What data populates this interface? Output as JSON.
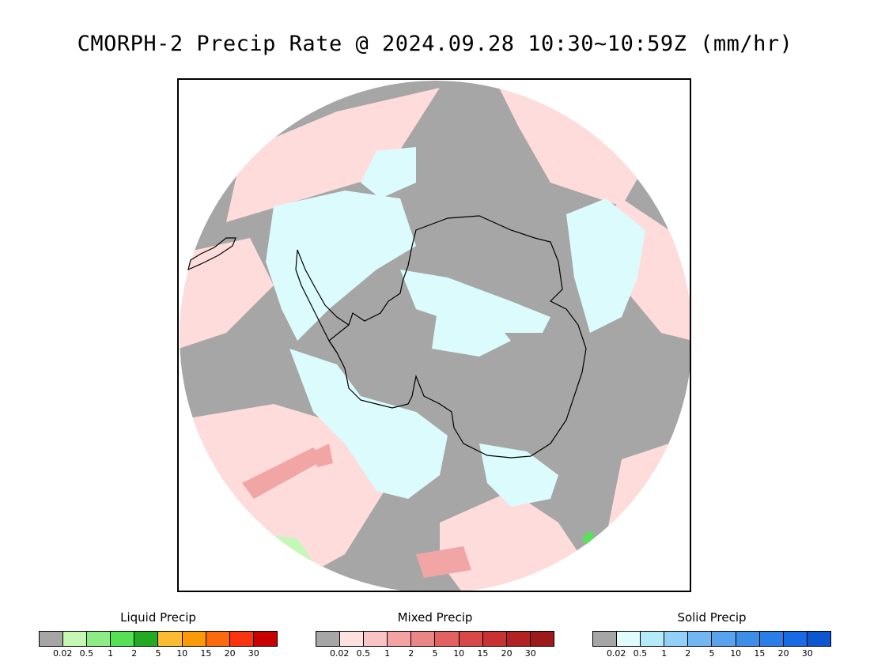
{
  "title": "CMORPH-2 Precip Rate @ 2024.09.28 10:30~10:59Z (mm/hr)",
  "map": {
    "projection": "south-polar-stereographic",
    "colors": {
      "no_precip": "#a6a6a6",
      "mixed_light": "#ffdcdc",
      "solid_light": "#dcfbfc",
      "mixed_moderate": "#f2a5a5",
      "liquid_light": "#c4f8b8",
      "liquid_moderate": "#5ae05a",
      "coastline": "#000000"
    }
  },
  "legends": [
    {
      "title": "Liquid Precip",
      "colors": [
        "#a6a6a6",
        "#c6f8b4",
        "#8eec86",
        "#55e055",
        "#22aa22",
        "#fbbb33",
        "#fb9a06",
        "#fb6a0c",
        "#fb3410",
        "#c80000"
      ],
      "ticks": [
        "0.02",
        "0.5",
        "1",
        "2",
        "5",
        "10",
        "15",
        "20",
        "30"
      ]
    },
    {
      "title": "Mixed Precip",
      "colors": [
        "#a6a6a6",
        "#fde1e1",
        "#f9c4c4",
        "#f3a3a3",
        "#ec8686",
        "#e26262",
        "#d84848",
        "#c83232",
        "#b22222",
        "#9c1a1a"
      ],
      "ticks": [
        "0.02",
        "0.5",
        "1",
        "2",
        "5",
        "10",
        "15",
        "20",
        "30"
      ]
    },
    {
      "title": "Solid Precip",
      "colors": [
        "#a6a6a6",
        "#e0fcfc",
        "#b3ecf8",
        "#93d0f8",
        "#72b6f2",
        "#58a2ee",
        "#3e8ee8",
        "#2a7ee8",
        "#1a6ae6",
        "#0c56d0"
      ],
      "ticks": [
        "0.02",
        "0.5",
        "1",
        "2",
        "5",
        "10",
        "15",
        "20",
        "30"
      ]
    }
  ]
}
